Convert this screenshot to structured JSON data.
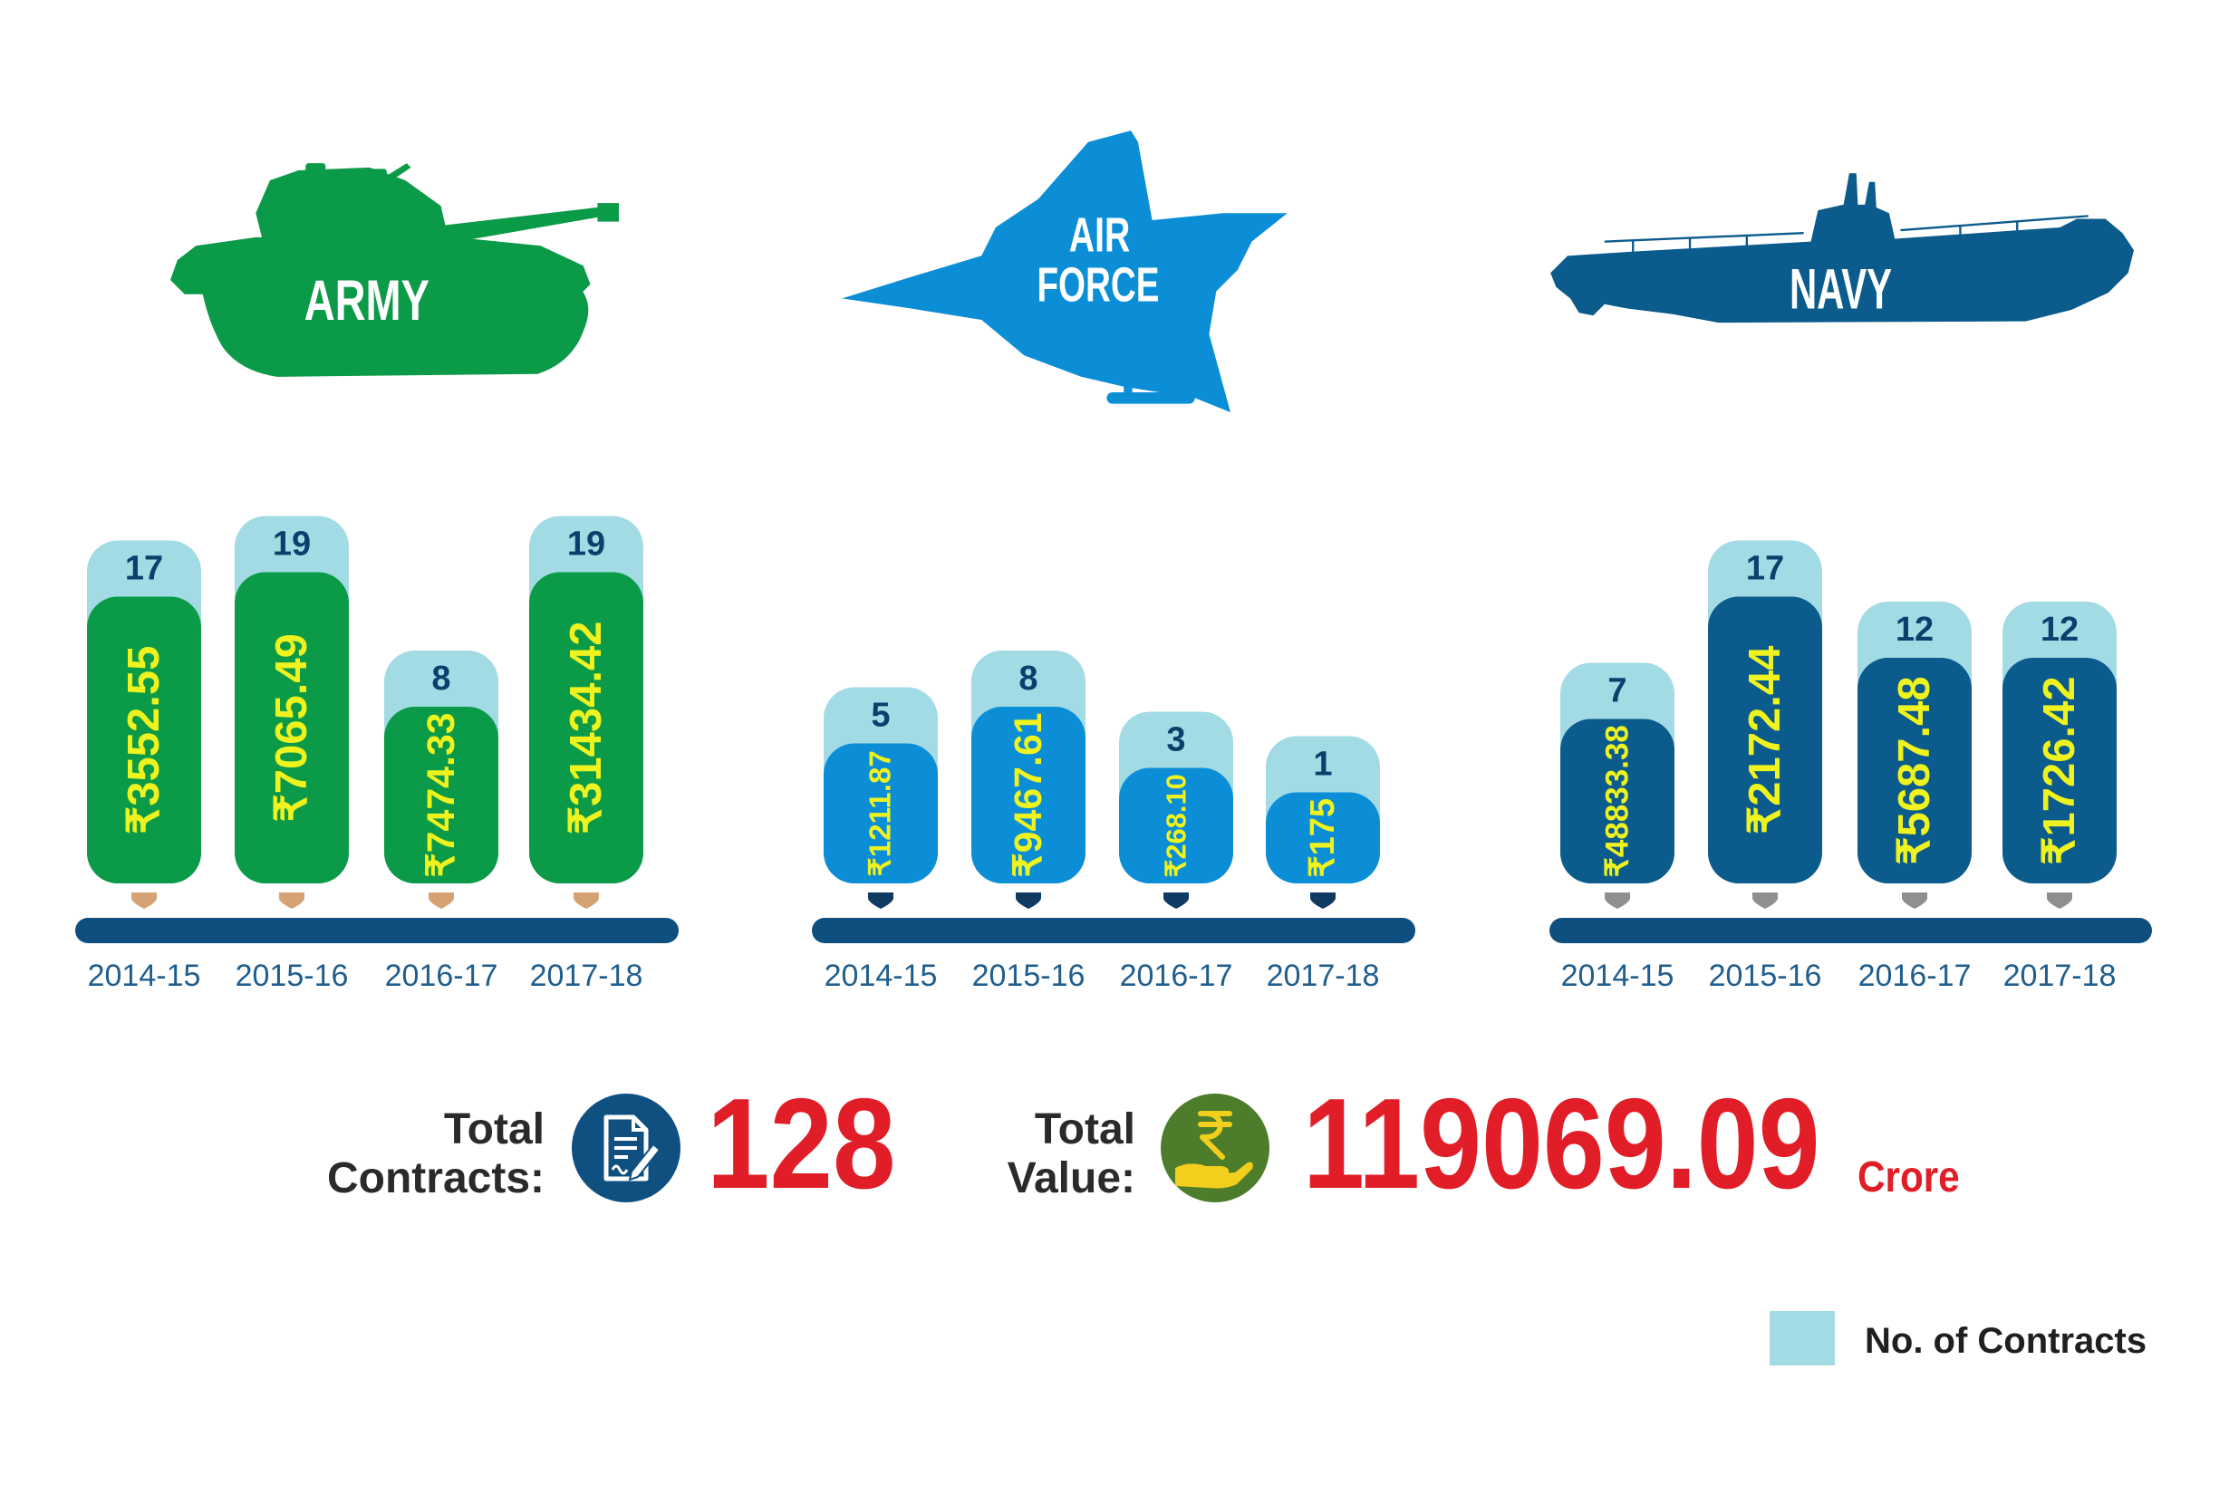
{
  "chart_data": [
    {
      "type": "bar",
      "label_lines": [
        "ARMY"
      ],
      "categories": [
        "2014-15",
        "2015-16",
        "2016-17",
        "2017-18"
      ],
      "series": [
        {
          "values": [
            17,
            19,
            8,
            19
          ]
        }
      ],
      "value_labels": [
        "₹3552.55",
        "₹7065.49",
        "₹7474.33",
        "₹31434.42"
      ],
      "colors": {
        "bar": "#0b9a48",
        "marker": "#d5a273"
      }
    },
    {
      "type": "bar",
      "label_lines": [
        "AIR",
        "FORCE"
      ],
      "categories": [
        "2014-15",
        "2015-16",
        "2016-17",
        "2017-18"
      ],
      "series": [
        {
          "values": [
            5,
            8,
            3,
            1
          ]
        }
      ],
      "value_labels": [
        "₹1211.87",
        "₹9467.61",
        "₹268.10",
        "₹175"
      ],
      "colors": {
        "bar": "#0b8ed6",
        "marker": "#0f3b63"
      }
    },
    {
      "type": "bar",
      "label_lines": [
        "NAVY"
      ],
      "categories": [
        "2014-15",
        "2015-16",
        "2016-17",
        "2017-18"
      ],
      "series": [
        {
          "values": [
            7,
            17,
            12,
            12
          ]
        }
      ],
      "value_labels": [
        "₹48833.38",
        "₹2172.44",
        "₹5687.48",
        "₹1726.42"
      ],
      "colors": {
        "bar": "#0b5b8c",
        "marker": "#8f8f8f"
      }
    }
  ],
  "summary": {
    "contracts_label_lines": [
      "Total",
      "Contracts:"
    ],
    "total_contracts": "128",
    "value_label_lines": [
      "Total",
      "Value:"
    ],
    "total_value": "119069.09",
    "value_unit": "Crore"
  },
  "legend": {
    "label": "No. of Contracts"
  },
  "colors": {
    "contracts_bar": "#a3dbe5",
    "count_text": "#0d3f6d",
    "value_text": "#eef21e",
    "baseline": "#0e4f80",
    "year_text": "#1f5e8e",
    "total_red": "#e11d27",
    "contracts_icon": "#0f5080",
    "value_icon": "#4d7c2a",
    "value_icon_symbol": "#f3cf1d"
  },
  "icons": {
    "army": "tank-icon",
    "air_force": "fighter-jet-icon",
    "navy": "submarine-icon",
    "contracts": "contract-document-icon",
    "value": "rupee-hand-icon"
  }
}
